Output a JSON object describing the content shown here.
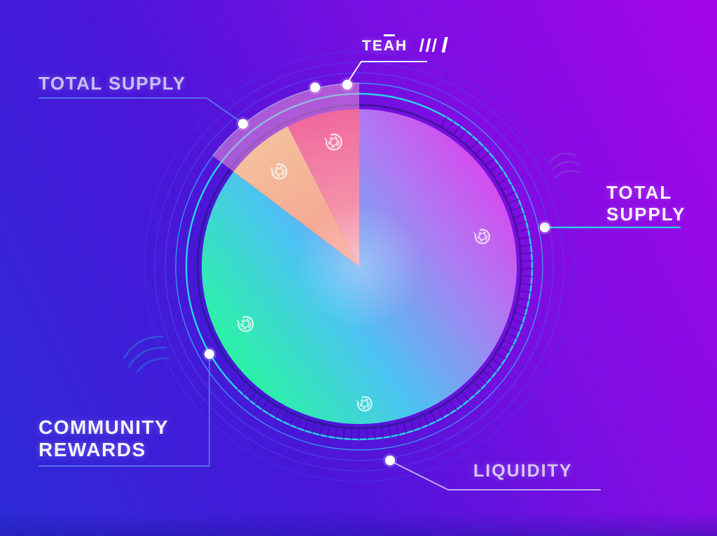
{
  "chart_data": {
    "type": "pie",
    "title": "",
    "start_angle_deg": 0,
    "direction": "clockwise",
    "slices": [
      {
        "id": "main",
        "percent": 85.3,
        "gradient": [
          "#e438ee",
          "#a97ff2",
          "#4cc3f2",
          "#2bf2a6"
        ]
      },
      {
        "id": "peach",
        "percent": 7.2,
        "gradient": [
          "#f3c09c",
          "#f79d92"
        ]
      },
      {
        "id": "pink",
        "percent": 7.5,
        "gradient": [
          "#ee5f9a",
          "#f8aab2"
        ]
      }
    ],
    "highlight_wedge": {
      "covers_percent": 14.7,
      "outer_radius_ratio": 1.17,
      "color": "#f79fd4",
      "opacity": 0.5
    },
    "legend_position": "callouts",
    "grid": false,
    "callouts": [
      {
        "label": "TOTAL SUPPLY",
        "position": "top-left"
      },
      {
        "label": "TEAM",
        "position": "top"
      },
      {
        "label": "TOTAL SUPPLY",
        "position": "right"
      },
      {
        "label": "COMMUNITY REWARDS",
        "position": "bottom-left"
      },
      {
        "label": "LIQUIDITY",
        "position": "bottom"
      }
    ]
  },
  "labels": {
    "total_supply_left": {
      "text": "TOTAL SUPPLY"
    },
    "team": {
      "label": "TEAM",
      "display_prefix": "TEAH"
    },
    "total_supply_right": {
      "line1": "TOTAL",
      "line2": "SUPPLY"
    },
    "community_rewards": {
      "line1": "COMMUNITY",
      "line2": "REWARDS"
    },
    "liquidity": {
      "text": "LIQUIDITY"
    }
  },
  "icons": {
    "name": "sync-icon",
    "count": 5
  },
  "colors": {
    "background_start": "#2c2bd8",
    "background_end": "#a505e9",
    "ring_cyan": "#25e2ea",
    "ring_blue": "#4b5cf0",
    "leader_blue": "#5570e8",
    "leader_cyan": "#2cd6da",
    "leader_lavender": "#c0b2f2",
    "leader_white": "#ffffff",
    "dot_white": "#ffffff"
  }
}
